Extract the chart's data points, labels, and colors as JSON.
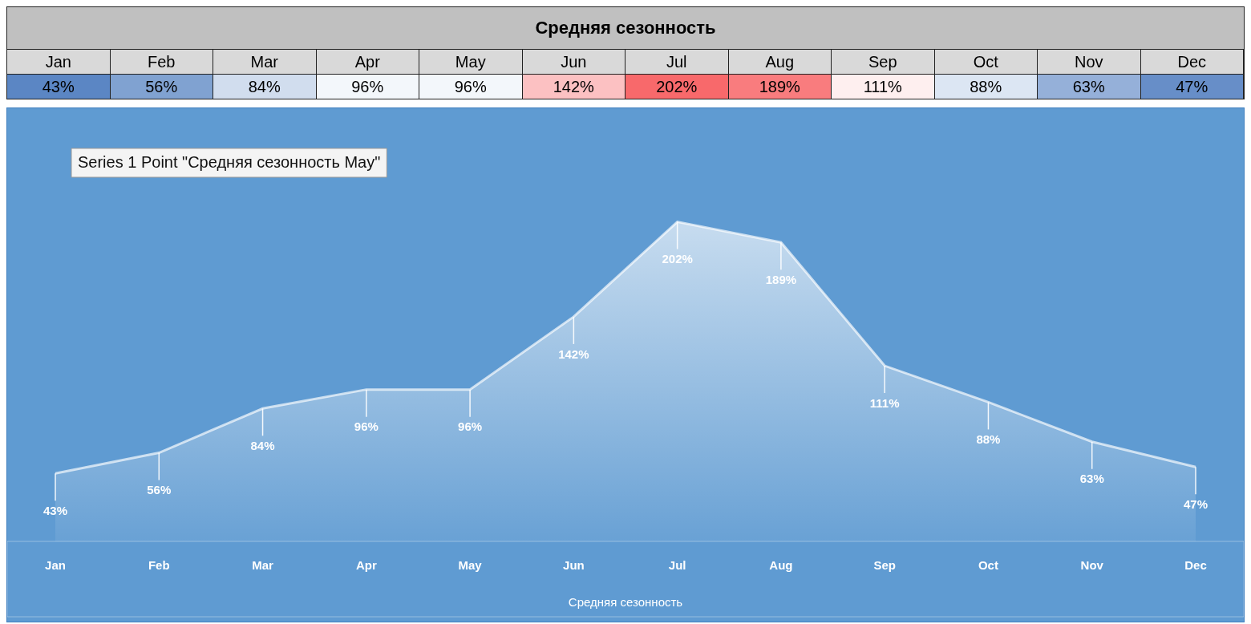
{
  "chart_data": {
    "type": "area",
    "title": "Средняя сезонность",
    "xlabel": "Средняя сезонность",
    "categories": [
      "Jan",
      "Feb",
      "Mar",
      "Apr",
      "May",
      "Jun",
      "Jul",
      "Aug",
      "Sep",
      "Oct",
      "Nov",
      "Dec"
    ],
    "values": [
      43,
      56,
      84,
      96,
      96,
      142,
      202,
      189,
      111,
      88,
      63,
      47
    ],
    "value_labels": [
      "43%",
      "56%",
      "84%",
      "96%",
      "96%",
      "142%",
      "202%",
      "189%",
      "111%",
      "88%",
      "63%",
      "47%"
    ],
    "color": "#ffffff",
    "annotations": [
      "Series 1 Point \"Средняя сезонность May\""
    ]
  }
}
